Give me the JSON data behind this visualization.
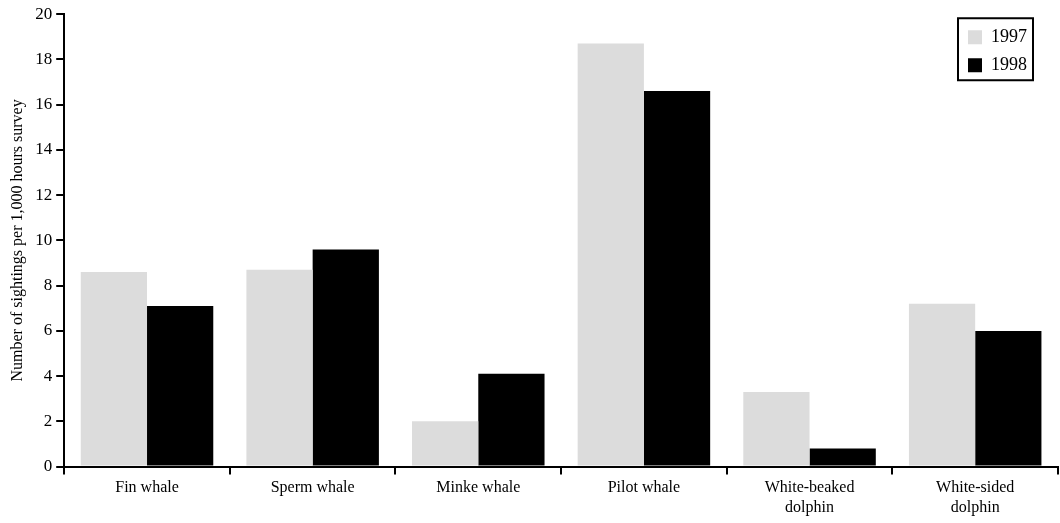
{
  "chart_data": {
    "type": "bar",
    "ylabel": "Number of sightings per 1,000 hours survey",
    "categories": [
      "Fin whale",
      "Sperm whale",
      "Minke whale",
      "Pilot whale",
      "White-beaked dolphin",
      "White-sided dolphin"
    ],
    "series": [
      {
        "name": "1997",
        "color": "#dcdcdc",
        "values": [
          8.6,
          8.7,
          2.0,
          18.7,
          3.3,
          7.2
        ]
      },
      {
        "name": "1998",
        "color": "#000000",
        "values": [
          7.1,
          9.6,
          4.1,
          16.6,
          0.8,
          6.0
        ]
      }
    ],
    "ylim": [
      0,
      20
    ],
    "yticks": [
      0,
      2,
      4,
      6,
      8,
      10,
      12,
      14,
      16,
      18,
      20
    ],
    "legend": "top right"
  }
}
